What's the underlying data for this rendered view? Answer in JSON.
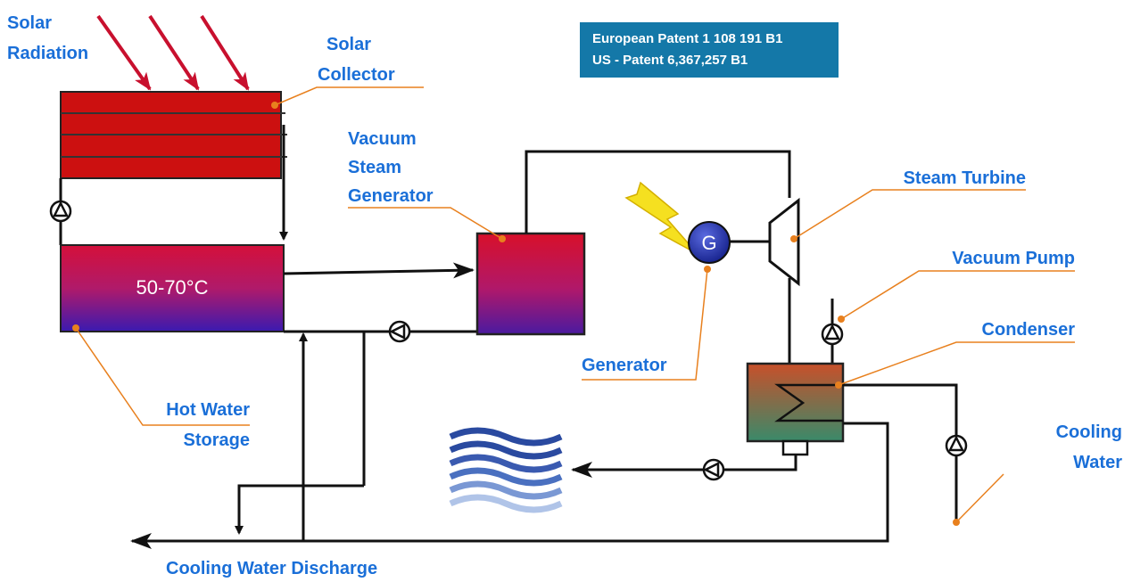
{
  "labels": {
    "solar_radiation": [
      "Solar",
      "Radiation"
    ],
    "solar_collector": [
      "Solar",
      "Collector"
    ],
    "vacuum_steam_generator": [
      "Vacuum",
      "Steam",
      "Generator"
    ],
    "steam_turbine": [
      "Steam Turbine"
    ],
    "vacuum_pump": [
      "Vacuum Pump"
    ],
    "condenser": [
      "Condenser"
    ],
    "cooling_water": [
      "Cooling",
      "Water"
    ],
    "generator": [
      "Generator"
    ],
    "hot_water_storage": [
      "Hot Water",
      "Storage"
    ],
    "cooling_water_discharge": [
      "Cooling Water Discharge"
    ]
  },
  "patents": [
    "European Patent 1 108 191 B1",
    "US - Patent 6,367,257 B1"
  ],
  "tank_temperature": "50-70°C",
  "generator_symbol": "G"
}
